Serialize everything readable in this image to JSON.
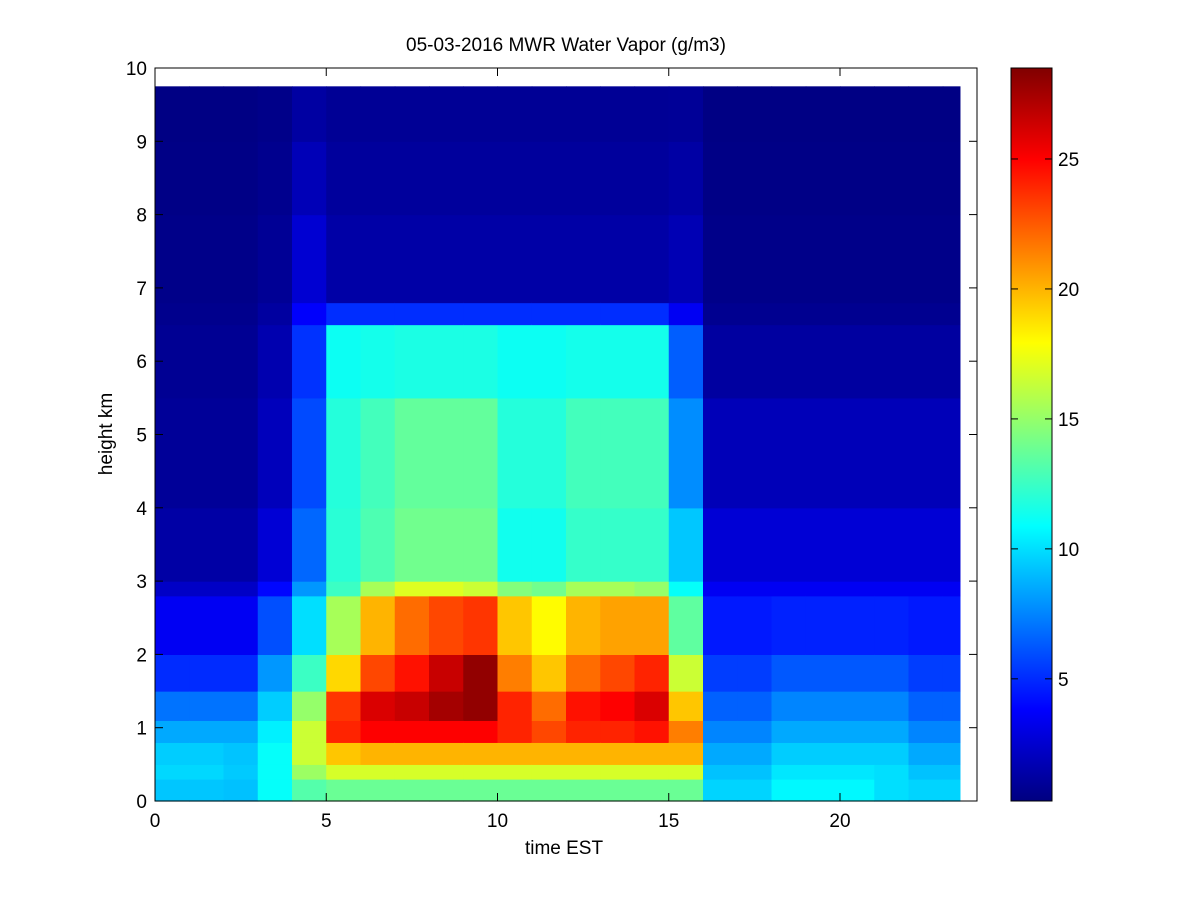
{
  "chart_data": {
    "type": "heatmap",
    "title": "05-03-2016 MWR Water Vapor (g/m3)",
    "xlabel": "time EST",
    "ylabel": "height km",
    "xlim": [
      0,
      24
    ],
    "ylim": [
      0,
      10
    ],
    "xticks": [
      0,
      5,
      10,
      15,
      20
    ],
    "yticks": [
      0,
      1,
      2,
      3,
      4,
      5,
      6,
      7,
      8,
      9,
      10
    ],
    "colormap": "jet",
    "clim": [
      0.3,
      28.5
    ],
    "colorbar_ticks": [
      5,
      10,
      15,
      20,
      25
    ],
    "data_extent": {
      "x": [
        0,
        23.5
      ],
      "y": [
        0,
        9.75
      ]
    },
    "time_columns_hours": [
      0.5,
      1.5,
      2.5,
      3.5,
      4.5,
      5.5,
      6.5,
      7.5,
      8.5,
      9.5,
      10.5,
      11.5,
      12.5,
      13.5,
      14.5,
      15.5,
      16.5,
      17.5,
      18.5,
      19.5,
      20.5,
      21.5,
      22.5,
      23.5
    ],
    "profile_heights_km": [
      0,
      0.3,
      0.5,
      0.8,
      1.1,
      1.5,
      2.0,
      2.8,
      3.0,
      4.0,
      5.5,
      6.5,
      6.8,
      8.0,
      9.0,
      9.75
    ],
    "water_vapor_g_m3": [
      [
        9,
        10,
        9,
        8,
        6,
        4,
        3,
        1.5,
        1,
        0.8,
        0.6,
        0.4
      ],
      [
        9,
        10,
        9,
        8,
        6,
        4,
        3,
        1.5,
        1,
        0.8,
        0.6,
        0.4
      ],
      [
        9,
        9.5,
        9,
        8,
        6,
        4,
        3,
        1.5,
        1,
        0.8,
        0.6,
        0.4
      ],
      [
        11,
        11,
        11,
        10,
        9,
        7,
        5,
        3,
        2,
        1.5,
        1,
        0.5
      ],
      [
        12,
        16,
        17,
        16,
        14,
        11,
        9,
        7,
        6,
        5,
        3,
        1
      ],
      [
        12,
        18,
        21,
        27,
        20,
        18,
        13,
        12,
        12,
        11,
        1.5,
        0.8
      ],
      [
        12,
        18,
        22,
        28,
        24,
        22,
        18,
        13,
        13,
        11,
        1.5,
        0.8
      ],
      [
        12,
        18,
        22,
        28,
        25,
        24,
        20,
        14,
        14,
        11,
        1.5,
        0.8
      ],
      [
        12,
        18,
        22,
        28,
        27,
        26,
        20,
        14,
        14,
        11,
        1.5,
        0.8
      ],
      [
        12,
        18,
        22,
        28,
        28,
        28,
        19,
        14,
        14,
        11,
        1.5,
        0.8
      ],
      [
        12,
        18,
        22,
        26,
        22,
        21,
        18,
        11,
        12,
        11,
        1.5,
        0.8
      ],
      [
        12,
        18,
        22,
        24,
        20,
        19,
        17,
        11,
        12,
        11,
        1.5,
        0.8
      ],
      [
        12,
        18,
        22,
        26,
        23,
        21,
        19,
        12,
        13,
        11,
        1.5,
        0.8
      ],
      [
        12,
        18,
        22,
        26,
        24,
        22,
        19,
        12,
        13,
        11,
        1.5,
        0.8
      ],
      [
        12,
        18,
        22,
        27,
        25,
        23,
        18,
        12,
        13,
        11,
        1.5,
        0.8
      ],
      [
        12,
        18,
        22,
        21,
        18,
        15,
        12,
        10,
        8,
        6,
        2,
        0.8
      ],
      [
        10,
        9,
        8,
        7,
        6,
        5,
        4,
        3,
        2,
        1,
        0.6,
        0.4
      ],
      [
        10,
        9,
        8,
        7,
        6,
        5,
        4,
        3,
        2,
        1,
        0.6,
        0.4
      ],
      [
        11,
        10,
        9,
        8,
        7,
        5.5,
        4,
        3,
        2,
        1,
        0.6,
        0.4
      ],
      [
        11,
        10,
        9,
        8,
        7,
        5.5,
        4,
        3,
        2,
        1,
        0.6,
        0.4
      ],
      [
        11,
        10,
        9,
        8,
        7,
        5.5,
        4,
        3,
        2,
        1,
        0.6,
        0.4
      ],
      [
        10,
        10,
        9,
        8,
        7,
        5.5,
        4,
        3,
        2,
        1,
        0.6,
        0.4
      ],
      [
        10,
        9,
        8,
        7,
        6,
        5,
        4,
        3,
        2,
        1,
        0.6,
        0.4
      ],
      [
        10,
        9,
        8,
        7,
        6,
        5,
        4,
        3,
        2,
        1,
        0.6,
        0.4
      ]
    ],
    "profile_nodes_km": [
      0,
      0.5,
      0.8,
      1.1,
      1.5,
      2.0,
      2.8,
      3.0,
      4.5,
      6.4,
      6.8,
      9.75
    ]
  }
}
